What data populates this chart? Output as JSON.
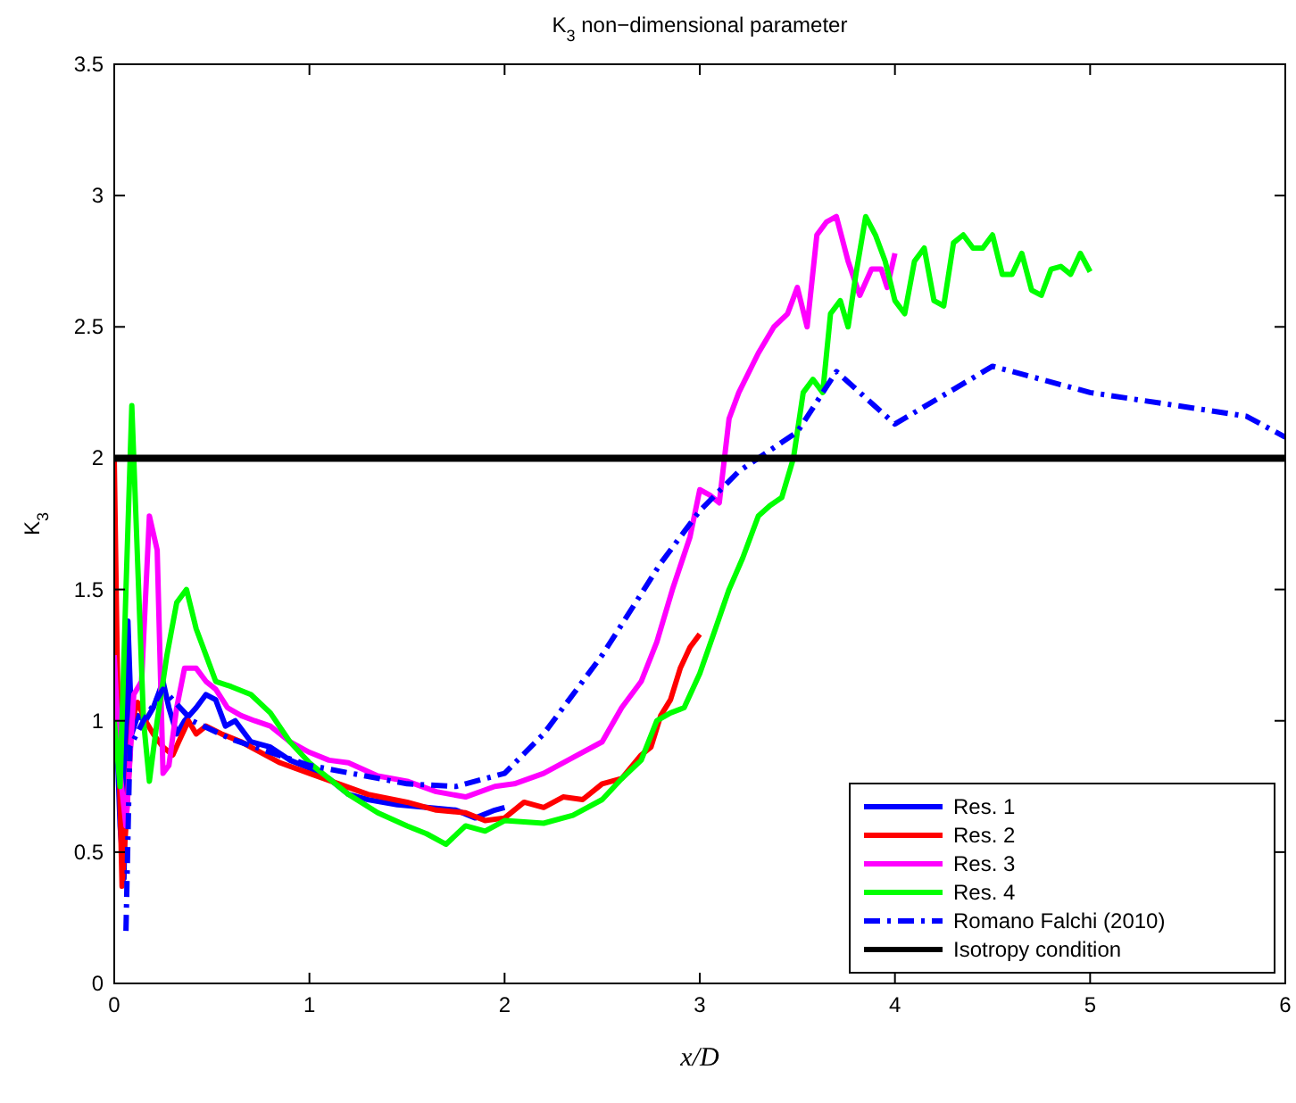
{
  "chart_data": {
    "type": "line",
    "title": "K$_{3}$ non−dimensional parameter",
    "xlabel": "x/D",
    "ylabel": "K$_{3}$",
    "xlim": [
      0,
      6
    ],
    "xticks": [
      0,
      1,
      2,
      3,
      4,
      5,
      6
    ],
    "ylim": [
      0,
      3.5
    ],
    "yticks": [
      0,
      0.5,
      1,
      1.5,
      2,
      2.5,
      3,
      3.5
    ],
    "grid": false,
    "legend": "bottom right",
    "series": [
      {
        "name": "Res. 1",
        "color": "#0000ff",
        "x": [
          0.01,
          0.03,
          0.05,
          0.07,
          0.09,
          0.12,
          0.16,
          0.2,
          0.25,
          0.28,
          0.32,
          0.36,
          0.42,
          0.47,
          0.52,
          0.57,
          0.62,
          0.7,
          0.8,
          0.9,
          1.0,
          1.1,
          1.2,
          1.3,
          1.45,
          1.6,
          1.75,
          1.85,
          1.95,
          2.0
        ],
        "values": [
          1.0,
          0.6,
          0.4,
          1.38,
          0.95,
          1.02,
          1.0,
          1.05,
          1.15,
          1.05,
          0.95,
          1.0,
          1.05,
          1.1,
          1.08,
          0.98,
          1.0,
          0.92,
          0.9,
          0.85,
          0.82,
          0.78,
          0.72,
          0.7,
          0.68,
          0.67,
          0.66,
          0.63,
          0.66,
          0.67
        ]
      },
      {
        "name": "Res. 2",
        "color": "#ff0000",
        "x": [
          0.0,
          0.02,
          0.04,
          0.06,
          0.09,
          0.12,
          0.16,
          0.2,
          0.25,
          0.3,
          0.33,
          0.38,
          0.42,
          0.47,
          0.55,
          0.65,
          0.75,
          0.85,
          1.0,
          1.15,
          1.3,
          1.5,
          1.65,
          1.8,
          1.9,
          2.0,
          2.1,
          2.2,
          2.3,
          2.4,
          2.5,
          2.6,
          2.7,
          2.75,
          2.8,
          2.85,
          2.9,
          2.95,
          3.0
        ],
        "values": [
          2.0,
          1.0,
          0.37,
          0.6,
          1.0,
          1.07,
          1.0,
          0.95,
          0.9,
          0.87,
          0.92,
          1.0,
          0.95,
          0.98,
          0.95,
          0.92,
          0.88,
          0.84,
          0.8,
          0.76,
          0.72,
          0.69,
          0.66,
          0.65,
          0.62,
          0.63,
          0.69,
          0.67,
          0.71,
          0.7,
          0.76,
          0.78,
          0.87,
          0.9,
          1.02,
          1.08,
          1.2,
          1.28,
          1.33
        ]
      },
      {
        "name": "Res. 3",
        "color": "#ff00ff",
        "x": [
          0.0,
          0.03,
          0.06,
          0.1,
          0.14,
          0.18,
          0.22,
          0.25,
          0.28,
          0.32,
          0.36,
          0.42,
          0.47,
          0.52,
          0.58,
          0.65,
          0.72,
          0.8,
          0.9,
          1.0,
          1.1,
          1.2,
          1.35,
          1.5,
          1.65,
          1.8,
          1.95,
          2.05,
          2.2,
          2.35,
          2.5,
          2.6,
          2.7,
          2.78,
          2.86,
          2.95,
          3.0,
          3.05,
          3.1,
          3.15,
          3.2,
          3.3,
          3.38,
          3.45,
          3.5,
          3.55,
          3.6,
          3.65,
          3.7,
          3.76,
          3.82,
          3.88,
          3.93,
          3.96,
          4.0
        ],
        "values": [
          1.25,
          0.8,
          0.6,
          1.1,
          1.15,
          1.78,
          1.65,
          0.8,
          0.83,
          1.05,
          1.2,
          1.2,
          1.15,
          1.12,
          1.05,
          1.02,
          1.0,
          0.98,
          0.92,
          0.88,
          0.85,
          0.84,
          0.79,
          0.77,
          0.73,
          0.71,
          0.75,
          0.76,
          0.8,
          0.86,
          0.92,
          1.05,
          1.15,
          1.3,
          1.5,
          1.7,
          1.88,
          1.86,
          1.83,
          2.15,
          2.25,
          2.4,
          2.5,
          2.55,
          2.65,
          2.5,
          2.85,
          2.9,
          2.92,
          2.75,
          2.62,
          2.72,
          2.72,
          2.65,
          2.78
        ]
      },
      {
        "name": "Res. 4",
        "color": "#00ff00",
        "x": [
          0.0,
          0.03,
          0.06,
          0.09,
          0.12,
          0.15,
          0.18,
          0.22,
          0.27,
          0.32,
          0.37,
          0.42,
          0.47,
          0.52,
          0.6,
          0.7,
          0.8,
          0.9,
          1.0,
          1.1,
          1.2,
          1.35,
          1.5,
          1.6,
          1.7,
          1.8,
          1.9,
          2.0,
          2.2,
          2.35,
          2.5,
          2.6,
          2.7,
          2.78,
          2.85,
          2.92,
          3.0,
          3.08,
          3.15,
          3.22,
          3.3,
          3.36,
          3.42,
          3.48,
          3.53,
          3.58,
          3.63,
          3.67,
          3.72,
          3.76,
          3.8,
          3.85,
          3.9,
          3.95,
          4.0,
          4.05,
          4.1,
          4.15,
          4.2,
          4.25,
          4.3,
          4.35,
          4.4,
          4.45,
          4.5,
          4.55,
          4.6,
          4.65,
          4.7,
          4.75,
          4.8,
          4.85,
          4.9,
          4.95,
          5.0
        ],
        "values": [
          1.0,
          0.75,
          1.5,
          2.2,
          1.6,
          1.0,
          0.77,
          1.0,
          1.25,
          1.45,
          1.5,
          1.35,
          1.25,
          1.15,
          1.13,
          1.1,
          1.03,
          0.92,
          0.84,
          0.78,
          0.72,
          0.65,
          0.6,
          0.57,
          0.53,
          0.6,
          0.58,
          0.62,
          0.61,
          0.64,
          0.7,
          0.78,
          0.85,
          1.0,
          1.03,
          1.05,
          1.18,
          1.35,
          1.5,
          1.62,
          1.78,
          1.82,
          1.85,
          2.0,
          2.25,
          2.3,
          2.25,
          2.55,
          2.6,
          2.5,
          2.7,
          2.92,
          2.85,
          2.75,
          2.6,
          2.55,
          2.75,
          2.8,
          2.6,
          2.58,
          2.82,
          2.85,
          2.8,
          2.8,
          2.85,
          2.7,
          2.7,
          2.78,
          2.64,
          2.62,
          2.72,
          2.73,
          2.7,
          2.78,
          2.71
        ]
      },
      {
        "name": "Romano Falchi (2010)",
        "color": "#0000ff",
        "line_style": "dashdot",
        "x": [
          0.06,
          0.08,
          0.15,
          0.25,
          0.4,
          0.6,
          1.0,
          1.5,
          1.75,
          2.0,
          2.2,
          2.5,
          2.8,
          3.0,
          3.2,
          3.5,
          3.7,
          4.0,
          4.5,
          5.0,
          5.8,
          6.0
        ],
        "values": [
          0.2,
          0.9,
          1.0,
          1.12,
          1.0,
          0.93,
          0.83,
          0.76,
          0.75,
          0.8,
          0.95,
          1.25,
          1.6,
          1.8,
          1.95,
          2.1,
          2.33,
          2.13,
          2.35,
          2.25,
          2.16,
          2.08
        ]
      },
      {
        "name": "Isotropy condition",
        "color": "#000000",
        "x": [
          0,
          6
        ],
        "values": [
          2,
          2
        ]
      }
    ]
  }
}
